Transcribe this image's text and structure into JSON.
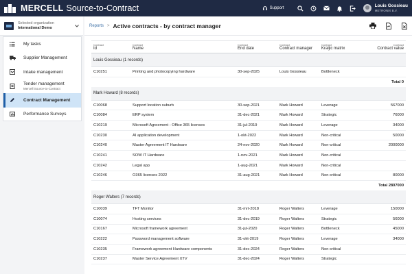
{
  "topbar": {
    "brand_name": "MERCELL",
    "brand_product": "Source-to-Contract",
    "support_label": "Support",
    "icons": [
      "search-icon",
      "history-icon",
      "mail-icon",
      "bell-icon",
      "exit-icon"
    ],
    "user_name": "Louis Gossieau",
    "user_org": "METRONIX B.V."
  },
  "org": {
    "label": "Selected organization",
    "name": "International Demo"
  },
  "nav": {
    "items": [
      {
        "label": "My tasks",
        "icon": "tasks-icon"
      },
      {
        "label": "Supplier Management",
        "icon": "truck-icon"
      },
      {
        "label": "Intake management",
        "icon": "intake-icon"
      },
      {
        "label": "Tender management",
        "sub": "Mercell Source-to-Contract",
        "icon": "tender-icon"
      },
      {
        "label": "Contract Management",
        "icon": "pen-icon",
        "active": true
      },
      {
        "label": "Performance Surveys",
        "icon": "survey-icon"
      }
    ]
  },
  "header": {
    "breadcrumb": "Reports",
    "separator": ">",
    "title": "Active contracts - by contract manager",
    "actions": [
      "print-icon",
      "export-document-icon",
      "export-excel-icon"
    ]
  },
  "table": {
    "columns": [
      {
        "sub": "Contract",
        "label": "Id"
      },
      {
        "sub": "Contract",
        "label": "Name"
      },
      {
        "sub": "Contract",
        "label": "End date"
      },
      {
        "sub": "Contract",
        "label": "Contract manager"
      },
      {
        "sub": "Contract",
        "label": "Kraljic matrix"
      },
      {
        "sub": "Contract",
        "label": "Contract value"
      }
    ],
    "groups": [
      {
        "title": "Louis Gossieau (1 records)",
        "rows": [
          [
            "C10251",
            "Printing and photocopying hardware",
            "30-sep-2025",
            "Louis Gossieau",
            "Bottleneck",
            ""
          ]
        ],
        "total": "Total 0"
      },
      {
        "title": "Mark Howard (8 records)",
        "rows": [
          [
            "C10068",
            "Support location suburb",
            "30-sep-2021",
            "Mark Howard",
            "Leverage",
            "567000"
          ],
          [
            "C10084",
            "ERP system",
            "31-dec-2021",
            "Mark Howard",
            "Strategic",
            "76000"
          ],
          [
            "C10219",
            "Microsoft Agreement - Office 365 licenses",
            "31-jul-2019",
            "Mark Howard",
            "Leverage",
            "34000"
          ],
          [
            "C10230",
            "AI application development",
            "1-okt-2022",
            "Mark Howard",
            "Non-critical",
            "50000"
          ],
          [
            "C10240",
            "Master Agreement IT Hardware",
            "24-nov-2020",
            "Mark Howard",
            "Non-critical",
            "2000000"
          ],
          [
            "C10241",
            "SOW IT Hardware",
            "1-nov-2021",
            "Mark Howard",
            "Non-critical",
            ""
          ],
          [
            "C10242",
            "Legal app",
            "1-aug-2021",
            "Mark Howard",
            "Non-critical",
            ""
          ],
          [
            "C10246",
            "O365 licenses 2022",
            "31-aug-2021",
            "Mark Howard",
            "Non-critical",
            "80000"
          ]
        ],
        "total": "Total 2807000"
      },
      {
        "title": "Roger Walters (7 records)",
        "rows": [
          [
            "C10039",
            "TFT Monitor",
            "31-mrt-2018",
            "Roger Walters",
            "Leverage",
            "150000"
          ],
          [
            "C10074",
            "Hosting services",
            "31-dec-2019",
            "Roger Walters",
            "Strategic",
            "56000"
          ],
          [
            "C10167",
            "Microsoft framework agreement",
            "31-jul-2020",
            "Roger Walters",
            "Bottleneck",
            "45000"
          ],
          [
            "C10222",
            "Password management software",
            "31-okt-2019",
            "Roger Walters",
            "Leverage",
            "34000"
          ],
          [
            "C10235",
            "Framework agreement Hardware components",
            "31-dec-2024",
            "Roger Walters",
            "Non-critical",
            ""
          ],
          [
            "C10237",
            "Master Service Agreement XTV",
            "31-dec-2024",
            "Roger Walters",
            "Strategic",
            ""
          ]
        ],
        "total": ""
      }
    ]
  }
}
